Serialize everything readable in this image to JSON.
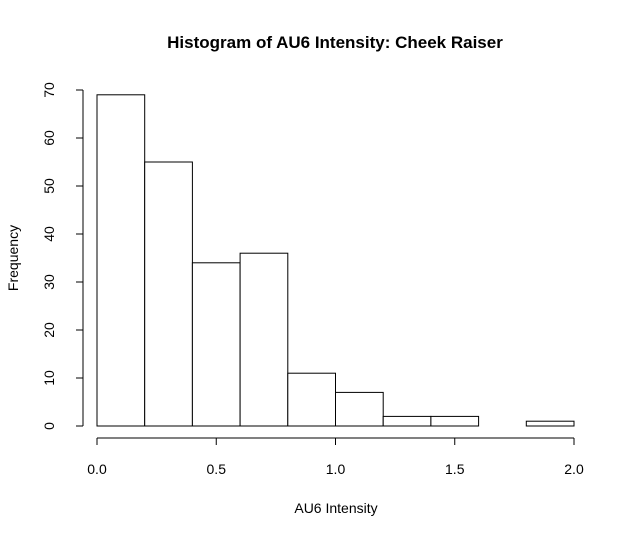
{
  "chart_data": {
    "type": "bar",
    "title": "Histogram of AU6 Intensity: Cheek Raiser",
    "xlabel": "AU6 Intensity",
    "ylabel": "Frequency",
    "bins": [
      {
        "x0": 0.0,
        "x1": 0.2,
        "count": 69
      },
      {
        "x0": 0.2,
        "x1": 0.4,
        "count": 55
      },
      {
        "x0": 0.4,
        "x1": 0.6,
        "count": 34
      },
      {
        "x0": 0.6,
        "x1": 0.8,
        "count": 36
      },
      {
        "x0": 0.8,
        "x1": 1.0,
        "count": 11
      },
      {
        "x0": 1.0,
        "x1": 1.2,
        "count": 7
      },
      {
        "x0": 1.2,
        "x1": 1.4,
        "count": 2
      },
      {
        "x0": 1.4,
        "x1": 1.6,
        "count": 2
      },
      {
        "x0": 1.6,
        "x1": 1.8,
        "count": 0
      },
      {
        "x0": 1.8,
        "x1": 2.0,
        "count": 1
      }
    ],
    "xlim": [
      0.0,
      2.0
    ],
    "ylim": [
      0,
      70
    ],
    "xticks": [
      0.0,
      0.5,
      1.0,
      1.5,
      2.0
    ],
    "xtick_labels": [
      "0.0",
      "0.5",
      "1.0",
      "1.5",
      "2.0"
    ],
    "yticks": [
      0,
      10,
      20,
      30,
      40,
      50,
      60,
      70
    ],
    "ytick_labels": [
      "0",
      "10",
      "20",
      "30",
      "40",
      "50",
      "60",
      "70"
    ],
    "grid": false,
    "legend": "none",
    "bar_fill": "#ffffff",
    "bar_stroke": "#000000"
  }
}
